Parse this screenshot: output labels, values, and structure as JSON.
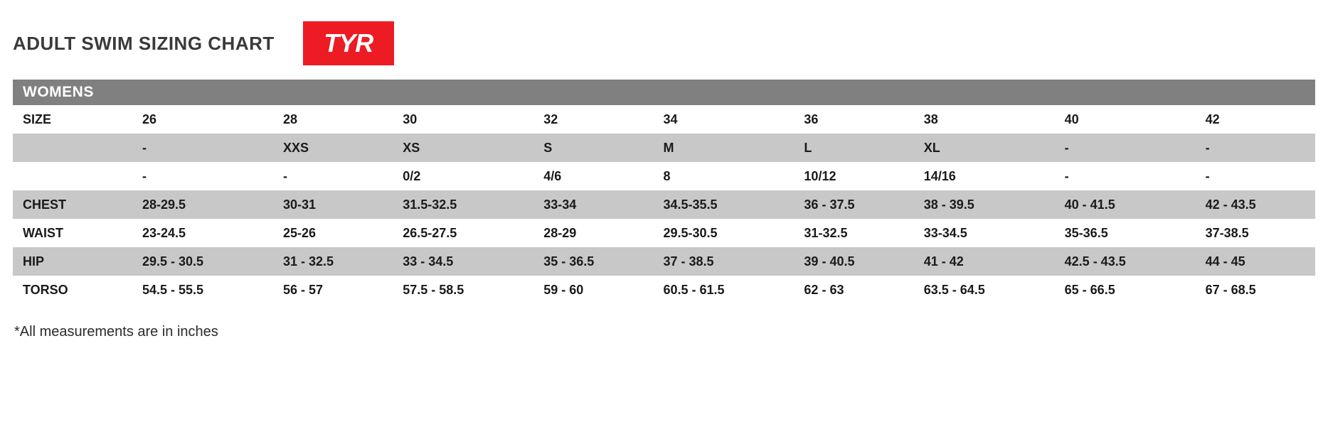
{
  "title": "ADULT SWIM SIZING CHART",
  "logo_text": "TYR",
  "section_header": "WOMENS",
  "colors": {
    "logo_bg": "#ed1c24",
    "logo_text": "#ffffff",
    "section_bg": "#808080",
    "section_text": "#ffffff",
    "row_shaded": "#c8c8c8",
    "row_white": "#ffffff",
    "text": "#1a1a1a",
    "title_text": "#3a3a3a"
  },
  "table": {
    "columns": [
      "",
      "26",
      "28",
      "30",
      "32",
      "34",
      "36",
      "38",
      "40",
      "42"
    ],
    "rows": [
      {
        "shaded": false,
        "cells": [
          "SIZE",
          "26",
          "28",
          "30",
          "32",
          "34",
          "36",
          "38",
          "40",
          "42"
        ]
      },
      {
        "shaded": true,
        "cells": [
          "",
          "-",
          "XXS",
          "XS",
          "S",
          "M",
          "L",
          "XL",
          "-",
          "-"
        ]
      },
      {
        "shaded": false,
        "cells": [
          "",
          "-",
          "-",
          "0/2",
          "4/6",
          "8",
          "10/12",
          "14/16",
          "-",
          "-"
        ]
      },
      {
        "shaded": true,
        "cells": [
          "CHEST",
          "28-29.5",
          "30-31",
          "31.5-32.5",
          "33-34",
          "34.5-35.5",
          "36 - 37.5",
          "38 - 39.5",
          "40 - 41.5",
          "42 - 43.5"
        ]
      },
      {
        "shaded": false,
        "cells": [
          "WAIST",
          "23-24.5",
          "25-26",
          "26.5-27.5",
          "28-29",
          "29.5-30.5",
          "31-32.5",
          "33-34.5",
          "35-36.5",
          "37-38.5"
        ]
      },
      {
        "shaded": true,
        "cells": [
          "HIP",
          "29.5 - 30.5",
          "31 - 32.5",
          "33 - 34.5",
          "35 - 36.5",
          "37 - 38.5",
          "39 - 40.5",
          "41 - 42",
          "42.5 - 43.5",
          "44 - 45"
        ]
      },
      {
        "shaded": false,
        "cells": [
          "TORSO",
          "54.5 - 55.5",
          "56 - 57",
          "57.5 - 58.5",
          "59 - 60",
          "60.5 - 61.5",
          "62 - 63",
          "63.5 - 64.5",
          "65 - 66.5",
          "67 - 68.5"
        ]
      }
    ]
  },
  "footnote": "*All measurements are in inches"
}
